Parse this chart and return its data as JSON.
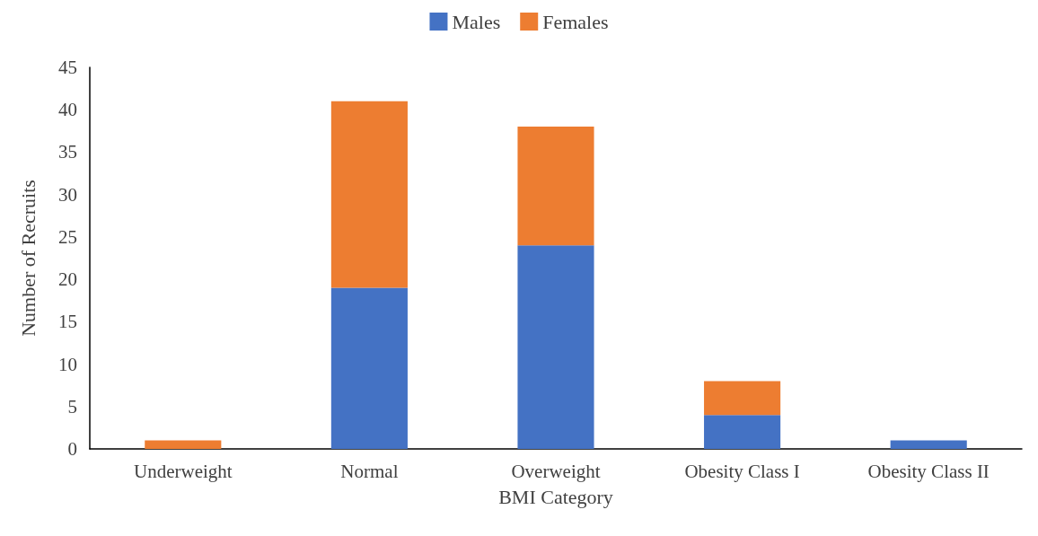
{
  "chart_data": {
    "type": "bar",
    "stacked": true,
    "categories": [
      "Underweight",
      "Normal",
      "Overweight",
      "Obesity Class I",
      "Obesity Class II"
    ],
    "series": [
      {
        "name": "Males",
        "color": "#4472c4",
        "values": [
          0,
          19,
          24,
          4,
          1
        ]
      },
      {
        "name": "Females",
        "color": "#ed7d31",
        "values": [
          1,
          22,
          14,
          4,
          0
        ]
      }
    ],
    "xlabel": "BMI Category",
    "ylabel": "Number of Recruits",
    "ylim": [
      0,
      45
    ],
    "yticks": [
      0,
      5,
      10,
      15,
      20,
      25,
      30,
      35,
      40,
      45
    ],
    "grid": false,
    "legend": "top"
  }
}
